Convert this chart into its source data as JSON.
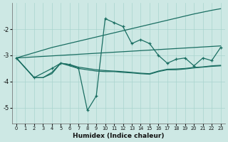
{
  "xlabel": "Humidex (Indice chaleur)",
  "background_color": "#cde8e4",
  "grid_color": "#a8d4ce",
  "line_color": "#1a6e62",
  "xlim": [
    -0.5,
    23.5
  ],
  "ylim": [
    -5.6,
    -1.0
  ],
  "yticks": [
    -5,
    -4,
    -3,
    -2
  ],
  "xticks": [
    0,
    1,
    2,
    3,
    4,
    5,
    6,
    7,
    8,
    9,
    10,
    11,
    12,
    13,
    14,
    15,
    16,
    17,
    18,
    19,
    20,
    21,
    22,
    23
  ],
  "s1_x": [
    0,
    1,
    2,
    3,
    4,
    5,
    6,
    7,
    8,
    9,
    10,
    11,
    12,
    13,
    14,
    15,
    16,
    17,
    18,
    19,
    20,
    21,
    22,
    23
  ],
  "s1_y": [
    -3.1,
    -3.0,
    -2.9,
    -2.8,
    -2.7,
    -2.62,
    -2.54,
    -2.46,
    -2.38,
    -2.3,
    -2.22,
    -2.14,
    -2.06,
    -1.98,
    -1.9,
    -1.82,
    -1.74,
    -1.66,
    -1.58,
    -1.5,
    -1.42,
    -1.35,
    -1.28,
    -1.22
  ],
  "s2_x": [
    0,
    1,
    2,
    3,
    4,
    5,
    6,
    7,
    8,
    9,
    10,
    11,
    12,
    13,
    14,
    15,
    16,
    17,
    18,
    19,
    20,
    21,
    22,
    23
  ],
  "s2_y": [
    -3.1,
    -3.08,
    -3.06,
    -3.04,
    -3.02,
    -3.0,
    -2.98,
    -2.96,
    -2.94,
    -2.92,
    -2.9,
    -2.88,
    -2.86,
    -2.84,
    -2.82,
    -2.8,
    -2.78,
    -2.76,
    -2.74,
    -2.72,
    -2.7,
    -2.68,
    -2.66,
    -2.64
  ],
  "s3_x": [
    0,
    2,
    4,
    5,
    6,
    7,
    8,
    9,
    10,
    11,
    12,
    13,
    14,
    15,
    16,
    17,
    18,
    19,
    20,
    21,
    22,
    23
  ],
  "s3_y": [
    -3.1,
    -3.85,
    -3.5,
    -3.3,
    -3.35,
    -3.5,
    -5.1,
    -4.55,
    -1.6,
    -1.75,
    -1.9,
    -2.55,
    -2.4,
    -2.55,
    -3.0,
    -3.3,
    -3.15,
    -3.1,
    -3.4,
    -3.1,
    -3.2,
    -2.7
  ],
  "s4_x": [
    0,
    2,
    3,
    4,
    5,
    6,
    7,
    8,
    9,
    10,
    11,
    12,
    13,
    14,
    15,
    16,
    17,
    18,
    19,
    20,
    21,
    22,
    23
  ],
  "s4_y": [
    -3.1,
    -3.85,
    -3.85,
    -3.7,
    -3.3,
    -3.4,
    -3.5,
    -3.55,
    -3.6,
    -3.62,
    -3.62,
    -3.65,
    -3.67,
    -3.7,
    -3.72,
    -3.62,
    -3.55,
    -3.55,
    -3.52,
    -3.48,
    -3.45,
    -3.42,
    -3.4
  ],
  "s5_x": [
    0,
    2,
    3,
    4,
    5,
    6,
    7,
    8,
    9,
    10,
    11,
    12,
    13,
    14,
    15,
    16,
    17,
    18,
    19,
    20,
    21,
    22,
    23
  ],
  "s5_y": [
    -3.1,
    -3.85,
    -3.85,
    -3.65,
    -3.3,
    -3.35,
    -3.45,
    -3.5,
    -3.55,
    -3.58,
    -3.6,
    -3.62,
    -3.65,
    -3.68,
    -3.7,
    -3.6,
    -3.53,
    -3.52,
    -3.5,
    -3.46,
    -3.44,
    -3.4,
    -3.38
  ]
}
